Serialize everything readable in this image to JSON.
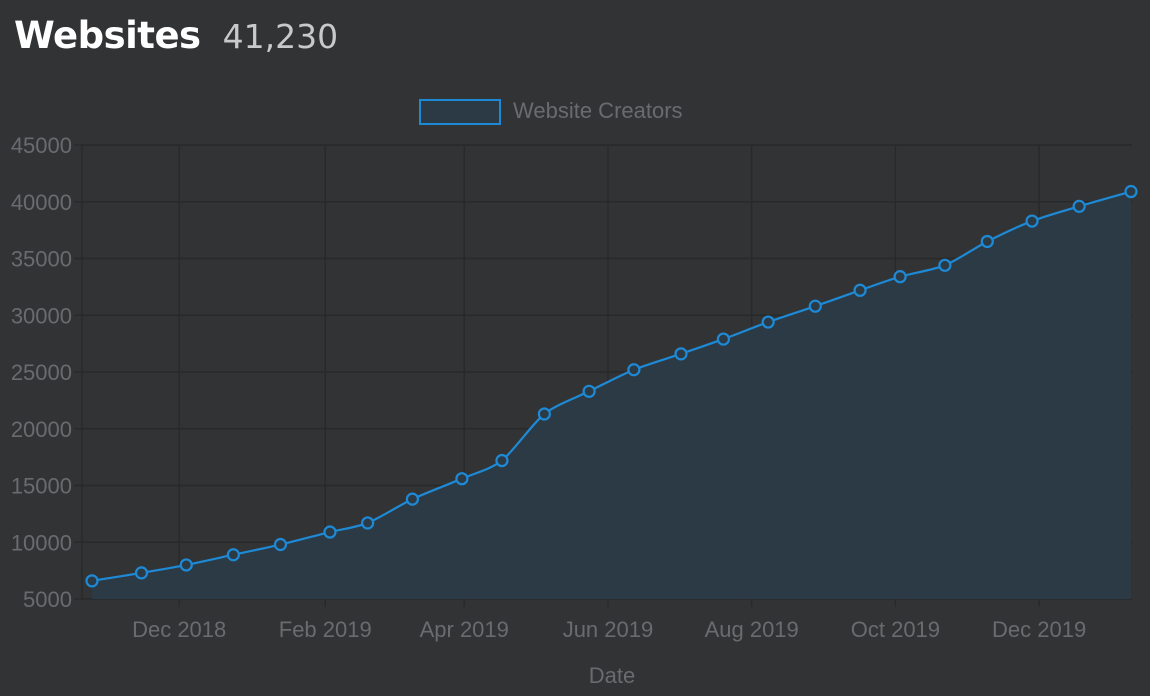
{
  "header": {
    "title": "Websites",
    "count": "41,230"
  },
  "chart_data": {
    "type": "area",
    "xlabel": "Date",
    "ylabel": "",
    "ylim": [
      5000,
      45000
    ],
    "yticks": [
      5000,
      10000,
      15000,
      20000,
      25000,
      30000,
      35000,
      40000,
      45000
    ],
    "xlim": [
      "2018-10-22",
      "2020-01-24"
    ],
    "xticks": [
      {
        "date": "2018-12-01",
        "label": "Dec 2018"
      },
      {
        "date": "2019-02-01",
        "label": "Feb 2019"
      },
      {
        "date": "2019-04-01",
        "label": "Apr 2019"
      },
      {
        "date": "2019-06-01",
        "label": "Jun 2019"
      },
      {
        "date": "2019-08-01",
        "label": "Aug 2019"
      },
      {
        "date": "2019-10-01",
        "label": "Oct 2019"
      },
      {
        "date": "2019-12-01",
        "label": "Dec 2019"
      }
    ],
    "grid": true,
    "legend_position": "top",
    "series": [
      {
        "name": "Website Creators",
        "color": "#1e8ad6",
        "fill": "#2b3a45",
        "points": [
          {
            "x": "2018-10-25",
            "y": 6600
          },
          {
            "x": "2018-11-15",
            "y": 7300
          },
          {
            "x": "2018-12-04",
            "y": 8000
          },
          {
            "x": "2018-12-24",
            "y": 8900
          },
          {
            "x": "2019-01-13",
            "y": 9800
          },
          {
            "x": "2019-02-03",
            "y": 10900
          },
          {
            "x": "2019-02-19",
            "y": 11700
          },
          {
            "x": "2019-03-10",
            "y": 13800
          },
          {
            "x": "2019-03-31",
            "y": 15600
          },
          {
            "x": "2019-04-17",
            "y": 17200
          },
          {
            "x": "2019-05-05",
            "y": 21300
          },
          {
            "x": "2019-05-24",
            "y": 23300
          },
          {
            "x": "2019-06-12",
            "y": 25200
          },
          {
            "x": "2019-07-02",
            "y": 26600
          },
          {
            "x": "2019-07-20",
            "y": 27900
          },
          {
            "x": "2019-08-08",
            "y": 29400
          },
          {
            "x": "2019-08-28",
            "y": 30800
          },
          {
            "x": "2019-09-16",
            "y": 32200
          },
          {
            "x": "2019-10-03",
            "y": 33400
          },
          {
            "x": "2019-10-22",
            "y": 34400
          },
          {
            "x": "2019-11-09",
            "y": 36500
          },
          {
            "x": "2019-11-28",
            "y": 38300
          },
          {
            "x": "2019-12-18",
            "y": 39600
          },
          {
            "x": "2020-01-09",
            "y": 40900
          }
        ]
      }
    ]
  }
}
